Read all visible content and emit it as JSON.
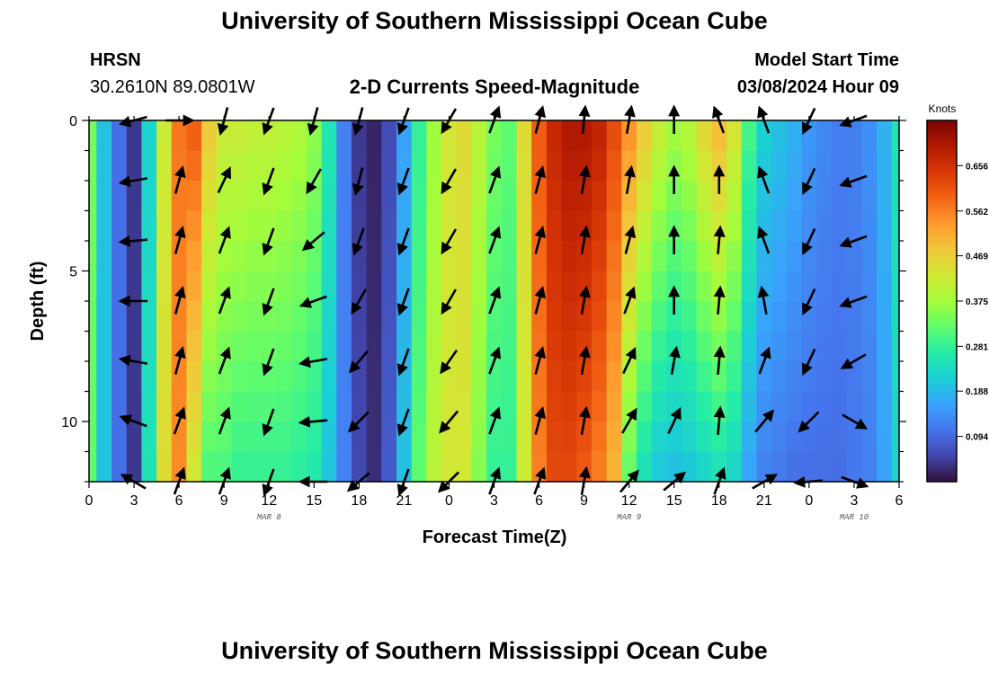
{
  "header": {
    "title": "University of Southern Mississippi Ocean Cube",
    "station": "HRSN",
    "coords": "30.2610N  89.0801W",
    "subtitle": "2-D Currents Speed-Magnitude",
    "model_label": "Model Start Time",
    "model_time": "03/08/2024 Hour 09"
  },
  "footer": {
    "title": "University of Southern Mississippi Ocean Cube"
  },
  "chart_data": {
    "type": "heatmap",
    "title": "2-D Currents Speed-Magnitude",
    "xlabel": "Forecast Time(Z)",
    "ylabel": "Depth (ft)",
    "xlim": [
      0,
      54
    ],
    "ylim": [
      0,
      12
    ],
    "x_tick_values": [
      0,
      3,
      6,
      9,
      12,
      15,
      18,
      21,
      24,
      27,
      30,
      33,
      36,
      39,
      42,
      45,
      48,
      51,
      54
    ],
    "x_tick_labels": [
      "0",
      "3",
      "6",
      "9",
      "12",
      "15",
      "18",
      "21",
      "0",
      "3",
      "6",
      "9",
      "12",
      "15",
      "18",
      "21",
      "0",
      "3",
      "6"
    ],
    "y_tick_values": [
      0,
      5,
      10
    ],
    "y_tick_labels": [
      "0",
      "5",
      "10"
    ],
    "date_labels": [
      {
        "hour": 12,
        "label": "MAR 8"
      },
      {
        "hour": 36,
        "label": "MAR 9"
      },
      {
        "hour": 51,
        "label": "MAR 10"
      }
    ],
    "colorbar": {
      "title": "Knots",
      "range": [
        0.0,
        0.75
      ],
      "tick_values": [
        0.094,
        0.188,
        0.281,
        0.375,
        0.469,
        0.562,
        0.656
      ],
      "tick_labels": [
        "0.094",
        "0.188",
        "0.281",
        "0.375",
        "0.469",
        "0.562",
        "0.656"
      ],
      "colors": [
        "#30123b",
        "#4145ab",
        "#4675ed",
        "#39a2fc",
        "#1bcfd4",
        "#24eca6",
        "#61fc6c",
        "#a4fc3b",
        "#d1e834",
        "#f3c63a",
        "#fe9b2d",
        "#f36315",
        "#d93806",
        "#b11901",
        "#7a0403"
      ]
    },
    "surface_speed_knots": [
      {
        "hour": 0,
        "speed": 0.34
      },
      {
        "hour": 1,
        "speed": 0.2
      },
      {
        "hour": 2,
        "speed": 0.1
      },
      {
        "hour": 3,
        "speed": 0.04
      },
      {
        "hour": 4,
        "speed": 0.22
      },
      {
        "hour": 5,
        "speed": 0.42
      },
      {
        "hour": 6,
        "speed": 0.57
      },
      {
        "hour": 7,
        "speed": 0.6
      },
      {
        "hour": 8,
        "speed": 0.48
      },
      {
        "hour": 9,
        "speed": 0.42
      },
      {
        "hour": 10,
        "speed": 0.42
      },
      {
        "hour": 11,
        "speed": 0.41
      },
      {
        "hour": 12,
        "speed": 0.41
      },
      {
        "hour": 13,
        "speed": 0.4
      },
      {
        "hour": 14,
        "speed": 0.39
      },
      {
        "hour": 15,
        "speed": 0.36
      },
      {
        "hour": 16,
        "speed": 0.26
      },
      {
        "hour": 17,
        "speed": 0.12
      },
      {
        "hour": 18,
        "speed": 0.04
      },
      {
        "hour": 19,
        "speed": 0.02
      },
      {
        "hour": 20,
        "speed": 0.06
      },
      {
        "hour": 21,
        "speed": 0.16
      },
      {
        "hour": 22,
        "speed": 0.28
      },
      {
        "hour": 23,
        "speed": 0.37
      },
      {
        "hour": 24,
        "speed": 0.43
      },
      {
        "hour": 25,
        "speed": 0.45
      },
      {
        "hour": 26,
        "speed": 0.4
      },
      {
        "hour": 27,
        "speed": 0.34
      },
      {
        "hour": 28,
        "speed": 0.32
      },
      {
        "hour": 29,
        "speed": 0.45
      },
      {
        "hour": 30,
        "speed": 0.6
      },
      {
        "hour": 31,
        "speed": 0.67
      },
      {
        "hour": 32,
        "speed": 0.7
      },
      {
        "hour": 33,
        "speed": 0.7
      },
      {
        "hour": 34,
        "speed": 0.68
      },
      {
        "hour": 35,
        "speed": 0.62
      },
      {
        "hour": 36,
        "speed": 0.55
      },
      {
        "hour": 37,
        "speed": 0.48
      },
      {
        "hour": 38,
        "speed": 0.42
      },
      {
        "hour": 39,
        "speed": 0.38
      },
      {
        "hour": 40,
        "speed": 0.4
      },
      {
        "hour": 41,
        "speed": 0.46
      },
      {
        "hour": 42,
        "speed": 0.5
      },
      {
        "hour": 43,
        "speed": 0.44
      },
      {
        "hour": 44,
        "speed": 0.3
      },
      {
        "hour": 45,
        "speed": 0.22
      },
      {
        "hour": 46,
        "speed": 0.2
      },
      {
        "hour": 47,
        "speed": 0.18
      },
      {
        "hour": 48,
        "speed": 0.15
      },
      {
        "hour": 49,
        "speed": 0.13
      },
      {
        "hour": 50,
        "speed": 0.12
      },
      {
        "hour": 51,
        "speed": 0.12
      },
      {
        "hour": 52,
        "speed": 0.14
      },
      {
        "hour": 53,
        "speed": 0.18
      },
      {
        "hour": 54,
        "speed": 0.25
      }
    ],
    "bottom_speed_knots": [
      {
        "hour": 0,
        "speed": 0.32
      },
      {
        "hour": 1,
        "speed": 0.2
      },
      {
        "hour": 2,
        "speed": 0.1
      },
      {
        "hour": 3,
        "speed": 0.04
      },
      {
        "hour": 4,
        "speed": 0.25
      },
      {
        "hour": 5,
        "speed": 0.45
      },
      {
        "hour": 6,
        "speed": 0.55
      },
      {
        "hour": 7,
        "speed": 0.42
      },
      {
        "hour": 8,
        "speed": 0.3
      },
      {
        "hour": 9,
        "speed": 0.3
      },
      {
        "hour": 10,
        "speed": 0.28
      },
      {
        "hour": 11,
        "speed": 0.28
      },
      {
        "hour": 12,
        "speed": 0.28
      },
      {
        "hour": 13,
        "speed": 0.28
      },
      {
        "hour": 14,
        "speed": 0.27
      },
      {
        "hour": 15,
        "speed": 0.26
      },
      {
        "hour": 16,
        "speed": 0.2
      },
      {
        "hour": 17,
        "speed": 0.12
      },
      {
        "hour": 18,
        "speed": 0.06
      },
      {
        "hour": 19,
        "speed": 0.03
      },
      {
        "hour": 20,
        "speed": 0.08
      },
      {
        "hour": 21,
        "speed": 0.2
      },
      {
        "hour": 22,
        "speed": 0.32
      },
      {
        "hour": 23,
        "speed": 0.4
      },
      {
        "hour": 24,
        "speed": 0.43
      },
      {
        "hour": 25,
        "speed": 0.43
      },
      {
        "hour": 26,
        "speed": 0.35
      },
      {
        "hour": 27,
        "speed": 0.28
      },
      {
        "hour": 28,
        "speed": 0.28
      },
      {
        "hour": 29,
        "speed": 0.42
      },
      {
        "hour": 30,
        "speed": 0.56
      },
      {
        "hour": 31,
        "speed": 0.62
      },
      {
        "hour": 32,
        "speed": 0.62
      },
      {
        "hour": 33,
        "speed": 0.6
      },
      {
        "hour": 34,
        "speed": 0.56
      },
      {
        "hour": 35,
        "speed": 0.5
      },
      {
        "hour": 36,
        "speed": 0.32
      },
      {
        "hour": 37,
        "speed": 0.24
      },
      {
        "hour": 38,
        "speed": 0.2
      },
      {
        "hour": 39,
        "speed": 0.19
      },
      {
        "hour": 40,
        "speed": 0.2
      },
      {
        "hour": 41,
        "speed": 0.22
      },
      {
        "hour": 42,
        "speed": 0.24
      },
      {
        "hour": 43,
        "speed": 0.22
      },
      {
        "hour": 44,
        "speed": 0.16
      },
      {
        "hour": 45,
        "speed": 0.12
      },
      {
        "hour": 46,
        "speed": 0.11
      },
      {
        "hour": 47,
        "speed": 0.1
      },
      {
        "hour": 48,
        "speed": 0.1
      },
      {
        "hour": 49,
        "speed": 0.1
      },
      {
        "hour": 50,
        "speed": 0.1
      },
      {
        "hour": 51,
        "speed": 0.11
      },
      {
        "hour": 52,
        "speed": 0.12
      },
      {
        "hour": 53,
        "speed": 0.16
      },
      {
        "hour": 54,
        "speed": 0.22
      }
    ],
    "vector_depths_ft": [
      0,
      2,
      4,
      6,
      8,
      10,
      12
    ],
    "vectors": [
      {
        "hour": 3,
        "angle_deg": [
          255,
          260,
          265,
          270,
          280,
          290,
          300
        ]
      },
      {
        "hour": 6,
        "angle_deg": [
          90,
          15,
          15,
          15,
          15,
          20,
          20
        ]
      },
      {
        "hour": 9,
        "angle_deg": [
          195,
          25,
          20,
          20,
          20,
          20,
          20
        ]
      },
      {
        "hour": 12,
        "angle_deg": [
          200,
          200,
          200,
          200,
          200,
          200,
          200
        ]
      },
      {
        "hour": 15,
        "angle_deg": [
          195,
          210,
          230,
          250,
          260,
          265,
          270
        ]
      },
      {
        "hour": 18,
        "angle_deg": [
          195,
          195,
          200,
          210,
          220,
          225,
          230
        ]
      },
      {
        "hour": 21,
        "angle_deg": [
          200,
          200,
          200,
          200,
          200,
          200,
          200
        ]
      },
      {
        "hour": 24,
        "angle_deg": [
          210,
          210,
          210,
          210,
          215,
          220,
          225
        ]
      },
      {
        "hour": 27,
        "angle_deg": [
          20,
          20,
          20,
          20,
          20,
          20,
          20
        ]
      },
      {
        "hour": 30,
        "angle_deg": [
          15,
          15,
          15,
          15,
          15,
          15,
          20
        ]
      },
      {
        "hour": 33,
        "angle_deg": [
          5,
          10,
          10,
          10,
          10,
          10,
          10
        ]
      },
      {
        "hour": 36,
        "angle_deg": [
          10,
          10,
          15,
          20,
          25,
          30,
          40
        ]
      },
      {
        "hour": 39,
        "angle_deg": [
          0,
          0,
          0,
          0,
          10,
          25,
          50
        ]
      },
      {
        "hour": 42,
        "angle_deg": [
          340,
          0,
          5,
          5,
          5,
          5,
          20
        ]
      },
      {
        "hour": 45,
        "angle_deg": [
          340,
          340,
          340,
          350,
          20,
          40,
          60
        ]
      },
      {
        "hour": 48,
        "angle_deg": [
          205,
          205,
          205,
          205,
          205,
          225,
          265
        ]
      },
      {
        "hour": 51,
        "angle_deg": [
          250,
          250,
          250,
          250,
          240,
          120,
          110
        ]
      }
    ]
  }
}
